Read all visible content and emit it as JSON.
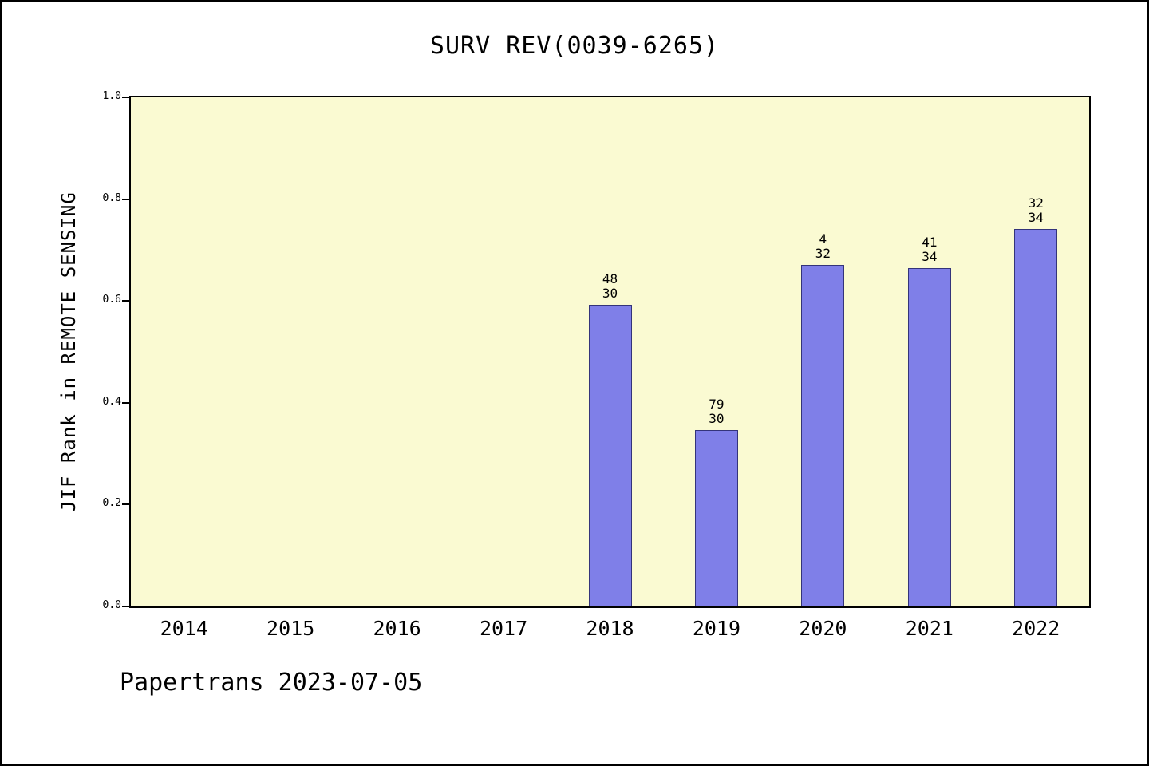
{
  "title": "SURV REV(0039-6265)",
  "footer": "Papertrans 2023-07-05",
  "colors": {
    "bar_fill": "#7F7FE8",
    "bar_edge": "#33337a",
    "plot_bg": "#FAFAD2",
    "page_bg": "#FFFFFF",
    "axis": "#000000"
  },
  "chart_data": {
    "type": "bar",
    "title": "SURV REV(0039-6265)",
    "xlabel": "",
    "ylabel": "JIF Rank in REMOTE SENSING",
    "ylim": [
      0.0,
      1.0
    ],
    "yticks": [
      0.0,
      0.2,
      0.4,
      0.6,
      0.8,
      1.0
    ],
    "grid": false,
    "legend": null,
    "categories": [
      "2014",
      "2015",
      "2016",
      "2017",
      "2018",
      "2019",
      "2020",
      "2021",
      "2022"
    ],
    "values": [
      null,
      null,
      null,
      null,
      0.593,
      0.347,
      0.671,
      0.665,
      0.741
    ],
    "bar_labels": [
      null,
      null,
      null,
      null,
      [
        "48",
        "30"
      ],
      [
        "79",
        "30"
      ],
      [
        "4",
        "32"
      ],
      [
        "41",
        "34"
      ],
      [
        "32",
        "34"
      ]
    ]
  }
}
